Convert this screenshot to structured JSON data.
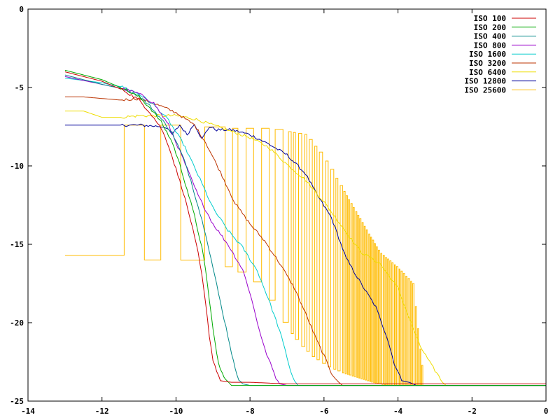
{
  "chart_data": {
    "type": "line",
    "title": "",
    "xlabel": "",
    "ylabel": "",
    "xlim": [
      -14,
      0
    ],
    "ylim": [
      -25,
      0
    ],
    "xticks": [
      -14,
      -12,
      -10,
      -8,
      -6,
      -4,
      -2,
      0
    ],
    "yticks": [
      0,
      -5,
      -10,
      -15,
      -20,
      -25
    ],
    "xtick_labels": [
      "-14",
      "-12",
      "-10",
      "-8",
      "-6",
      "-4",
      "-2",
      "0"
    ],
    "ytick_labels": [
      "0",
      "-5",
      "-10",
      "-15",
      "-20",
      "-25"
    ],
    "grid": false,
    "legend_position": "top-right",
    "series": [
      {
        "name": "ISO 100",
        "color": "#cc0000",
        "style": "smooth",
        "x": [
          -13,
          -12,
          -11.4,
          -11,
          -10.7,
          -10.4,
          -10.2,
          -10.0,
          -9.8,
          -9.6,
          -9.4,
          -9.3,
          -9.2,
          -9.1,
          -9.0,
          -8.8,
          -8.5,
          -8.0,
          -7.0,
          -5.0,
          -3.0,
          -1.0,
          0
        ],
        "y": [
          -4.0,
          -4.6,
          -5.2,
          -5.8,
          -6.6,
          -7.6,
          -8.7,
          -10.2,
          -11.7,
          -13.5,
          -15.6,
          -17.0,
          -18.8,
          -20.8,
          -22.4,
          -23.7,
          -23.8,
          -23.8,
          -23.9,
          -23.9,
          -23.9,
          -23.9,
          -23.9
        ]
      },
      {
        "name": "ISO 200",
        "color": "#00aa00",
        "style": "smooth",
        "x": [
          -13,
          -12,
          -11.4,
          -11,
          -10.7,
          -10.4,
          -10.1,
          -9.9,
          -9.7,
          -9.5,
          -9.3,
          -9.2,
          -9.1,
          -9.0,
          -8.9,
          -8.8,
          -8.7,
          -8.5,
          -8.0,
          -5.0,
          0
        ],
        "y": [
          -3.9,
          -4.5,
          -5.1,
          -5.6,
          -6.3,
          -7.2,
          -8.5,
          -9.9,
          -11.5,
          -13.2,
          -15.2,
          -16.7,
          -18.5,
          -20.4,
          -22.0,
          -23.0,
          -23.5,
          -24.0,
          -24.0,
          -24.0,
          -24.0
        ]
      },
      {
        "name": "ISO 400",
        "color": "#008888",
        "style": "smooth",
        "x": [
          -13,
          -12,
          -11.4,
          -11,
          -10.7,
          -10.4,
          -10.1,
          -9.8,
          -9.6,
          -9.4,
          -9.2,
          -9.0,
          -8.8,
          -8.6,
          -8.5,
          -8.4,
          -8.3,
          -8.2,
          -8.0,
          -5.0,
          0
        ],
        "y": [
          -4.2,
          -4.8,
          -5.1,
          -5.5,
          -6.2,
          -7.0,
          -7.9,
          -9.5,
          -10.9,
          -12.6,
          -14.3,
          -16.5,
          -18.7,
          -20.8,
          -21.9,
          -23.0,
          -23.6,
          -23.9,
          -24.0,
          -24.0,
          -24.0
        ]
      },
      {
        "name": "ISO 800",
        "color": "#9900cc",
        "style": "smooth",
        "x": [
          -13,
          -12,
          -11.4,
          -11,
          -10.6,
          -10.2,
          -9.8,
          -9.4,
          -9.0,
          -8.6,
          -8.2,
          -8.0,
          -7.8,
          -7.6,
          -7.4,
          -7.3,
          -7.2,
          -7.0,
          -5.0,
          0
        ],
        "y": [
          -4.3,
          -4.8,
          -5.1,
          -5.4,
          -6.0,
          -7.4,
          -9.6,
          -11.9,
          -13.7,
          -15.0,
          -16.6,
          -18.1,
          -20.0,
          -21.7,
          -22.9,
          -23.5,
          -23.9,
          -24.0,
          -24.0,
          -24.0
        ]
      },
      {
        "name": "ISO 1600",
        "color": "#00cccc",
        "style": "smooth",
        "x": [
          -13,
          -12,
          -11.4,
          -11,
          -10.6,
          -10.2,
          -9.8,
          -9.4,
          -9.0,
          -8.6,
          -8.2,
          -7.8,
          -7.5,
          -7.2,
          -7.0,
          -6.9,
          -6.8,
          -6.7,
          -6.0,
          -3.0,
          0
        ],
        "y": [
          -4.4,
          -4.7,
          -5.0,
          -5.4,
          -6.1,
          -7.1,
          -8.6,
          -10.6,
          -12.7,
          -14.1,
          -15.2,
          -16.7,
          -18.5,
          -20.5,
          -22.2,
          -23.1,
          -23.7,
          -24.0,
          -24.0,
          -24.0,
          -24.0
        ]
      },
      {
        "name": "ISO 3200",
        "color": "#bb3300",
        "style": "smooth",
        "x": [
          -13,
          -12.5,
          -12,
          -11.5,
          -11,
          -10.5,
          -10,
          -9.5,
          -9.2,
          -8.8,
          -8.4,
          -8.0,
          -7.6,
          -7.2,
          -6.8,
          -6.5,
          -6.2,
          -6.0,
          -5.8,
          -5.6,
          -5.5,
          -5.0,
          0
        ],
        "y": [
          -5.6,
          -5.6,
          -5.7,
          -5.8,
          -5.7,
          -6.1,
          -6.6,
          -7.4,
          -8.5,
          -10.4,
          -12.4,
          -13.7,
          -14.8,
          -16.2,
          -17.8,
          -19.4,
          -21.1,
          -22.1,
          -23.2,
          -23.8,
          -24.0,
          -24.0,
          -24.0
        ]
      },
      {
        "name": "ISO 6400",
        "color": "#eedd00",
        "style": "smooth",
        "x": [
          -13,
          -12.5,
          -12,
          -11.5,
          -11,
          -10.5,
          -10,
          -9.5,
          -9.0,
          -8.5,
          -8.0,
          -7.5,
          -7.0,
          -6.5,
          -6.0,
          -5.5,
          -5.0,
          -4.5,
          -4.0,
          -3.7,
          -3.4,
          -3.1,
          -2.9,
          -2.8,
          -2.7,
          -2.0,
          0
        ],
        "y": [
          -6.5,
          -6.5,
          -6.9,
          -6.9,
          -6.8,
          -6.8,
          -6.8,
          -7.0,
          -7.4,
          -7.8,
          -8.2,
          -8.8,
          -9.9,
          -10.9,
          -12.3,
          -13.9,
          -15.5,
          -16.2,
          -17.8,
          -19.7,
          -21.5,
          -22.7,
          -23.4,
          -23.8,
          -24.0,
          -24.0,
          -24.0
        ]
      },
      {
        "name": "ISO 12800",
        "color": "#000099",
        "style": "smooth",
        "x": [
          -13,
          -12,
          -11,
          -10.3,
          -10.1,
          -9.9,
          -9.7,
          -9.5,
          -9.3,
          -9.1,
          -8.9,
          -8.5,
          -8.0,
          -7.5,
          -7.0,
          -6.5,
          -6.2,
          -5.8,
          -5.6,
          -5.4,
          -5.0,
          -4.6,
          -4.3,
          -4.1,
          -3.9,
          -3.7,
          -3.5,
          -3.0,
          0
        ],
        "y": [
          -7.4,
          -7.4,
          -7.4,
          -7.5,
          -8.0,
          -7.4,
          -8.0,
          -7.3,
          -8.3,
          -7.5,
          -7.7,
          -7.7,
          -8.0,
          -8.6,
          -9.3,
          -10.5,
          -11.8,
          -13.3,
          -14.6,
          -15.9,
          -17.5,
          -19.0,
          -20.9,
          -22.6,
          -23.7,
          -23.8,
          -24.0,
          -24.0,
          -24.0
        ]
      },
      {
        "name": "ISO 25600",
        "color": "#ffbb00",
        "style": "iso25600",
        "lower_envelope": {
          "x": [
            -10.3,
            -9.9,
            -9.5,
            -9.1,
            -8.7,
            -8.3,
            -7.9,
            -7.5,
            -7.1,
            -6.7,
            -6.3,
            -5.9,
            -5.5,
            -5.1,
            -4.7,
            -4.3,
            -4.0,
            -3.6,
            -3.0
          ],
          "y": [
            -16.0,
            -16.0,
            -16.1,
            -16.2,
            -16.4,
            -16.8,
            -17.4,
            -18.5,
            -20.0,
            -21.3,
            -22.2,
            -22.8,
            -23.2,
            -23.5,
            -23.8,
            -24.0,
            -24.0,
            -24.0,
            -24.0
          ]
        },
        "upper_envelope": {
          "x": [
            -11.4,
            -10.5,
            -10.0,
            -9.5,
            -9.0,
            -8.5,
            -8.0,
            -7.5,
            -7.0,
            -6.5,
            -6.0,
            -5.5,
            -5.0,
            -4.5,
            -4.0,
            -3.6,
            -3.3
          ],
          "y": [
            -7.4,
            -7.4,
            -7.4,
            -7.4,
            -7.6,
            -7.6,
            -7.6,
            -7.6,
            -7.8,
            -8.0,
            -9.5,
            -11.5,
            -13.5,
            -15.5,
            -16.5,
            -17.5,
            -24.0
          ]
        },
        "plateau_left": {
          "x": [
            -13,
            -11.4
          ],
          "y": [
            -15.7,
            -15.7
          ]
        },
        "tail": {
          "x": [
            -2.9,
            0
          ],
          "y": [
            -24.0,
            -24.0
          ]
        },
        "oscillation_start_x": -11.4,
        "oscillation_end_x": -2.9
      }
    ]
  }
}
